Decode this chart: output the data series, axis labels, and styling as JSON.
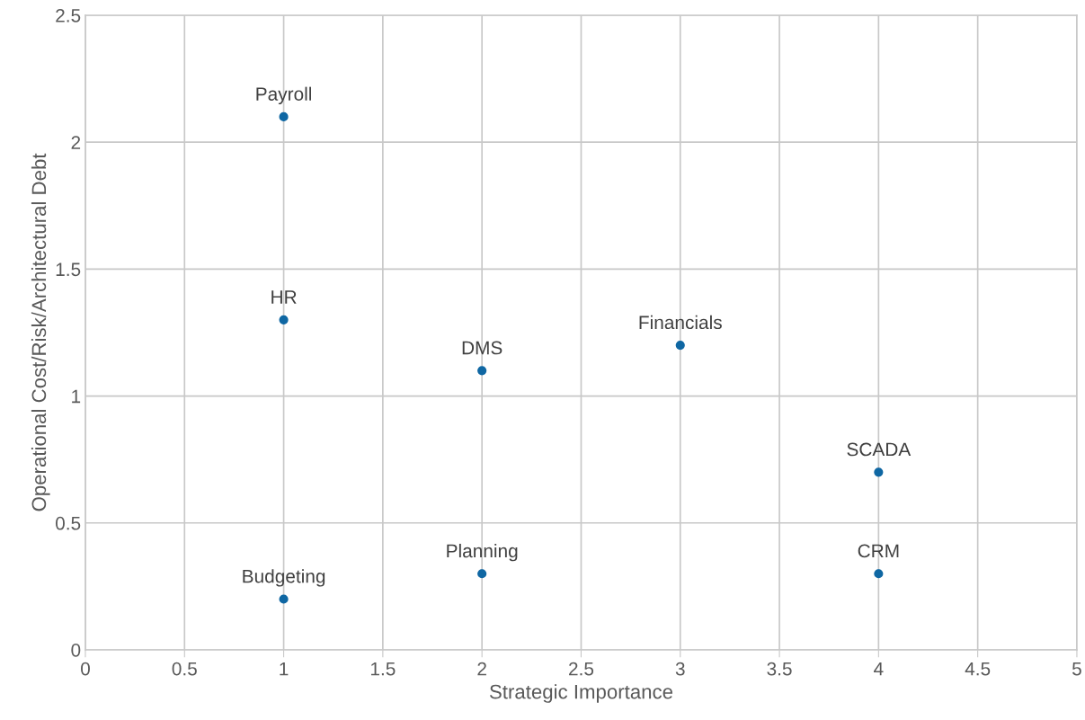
{
  "chart_data": {
    "type": "scatter",
    "xlabel": "Strategic Importance",
    "ylabel": "Operational Cost/Risk/Architectural Debt",
    "x": [
      1,
      1,
      1,
      2,
      2,
      3,
      4,
      4
    ],
    "series": [
      {
        "color": "#0f67a3",
        "values": [
          2.1,
          1.3,
          0.2,
          1.1,
          0.3,
          1.2,
          0.7,
          0.3
        ]
      }
    ],
    "annotations": [
      {
        "text": "Payroll",
        "x": 1,
        "y": 2.1
      },
      {
        "text": "HR",
        "x": 1,
        "y": 1.3
      },
      {
        "text": "Budgeting",
        "x": 1,
        "y": 0.2
      },
      {
        "text": "DMS",
        "x": 2,
        "y": 1.1
      },
      {
        "text": "Planning",
        "x": 2,
        "y": 0.3
      },
      {
        "text": "Financials",
        "x": 3,
        "y": 1.2
      },
      {
        "text": "SCADA",
        "x": 4,
        "y": 0.7
      },
      {
        "text": "CRM",
        "x": 4,
        "y": 0.3
      }
    ],
    "xlim": [
      0,
      5
    ],
    "xticks": [
      0,
      0.5,
      1,
      1.5,
      2,
      2.5,
      3,
      3.5,
      4,
      4.5,
      5
    ],
    "ylim": [
      0,
      2.5
    ],
    "yticks": [
      0,
      0.5,
      1,
      1.5,
      2,
      2.5
    ],
    "grid": true,
    "legend": false,
    "marker": "circle"
  }
}
